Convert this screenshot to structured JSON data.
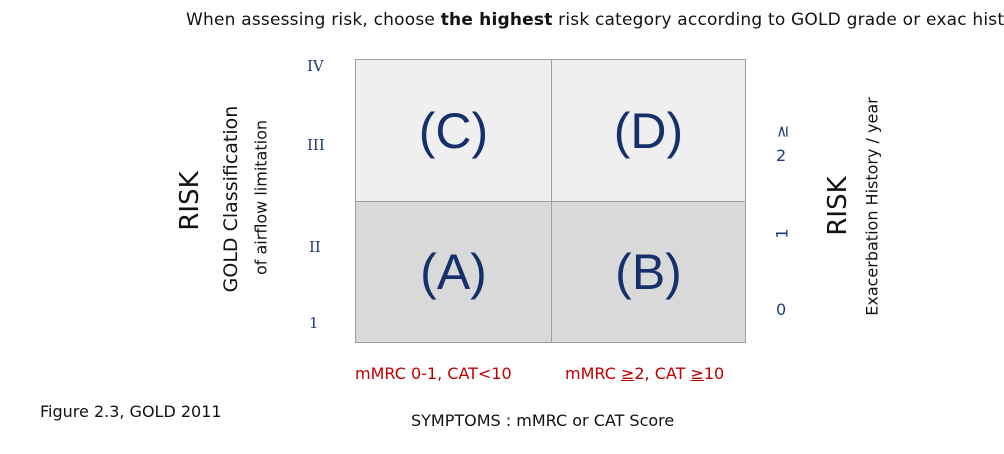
{
  "header": {
    "prefix": "When assessing risk, choose ",
    "bold": "the highest",
    "suffix": " risk category according to GOLD grade or exac history"
  },
  "left_axis": {
    "title": "RISK",
    "line1": "GOLD Classification",
    "line2": "of airflow limitation",
    "grades": [
      "IV",
      "III",
      "II",
      "1"
    ]
  },
  "right_axis": {
    "title": "RISK",
    "subtitle": "Exacerbation History / year",
    "ticks": {
      "top": "≥",
      "top_num": "2",
      "mid": "1",
      "bottom": "0"
    }
  },
  "quadrants": {
    "top_left": "(C)",
    "top_right": "(D)",
    "bottom_left": "(A)",
    "bottom_right": "(B)"
  },
  "symptom_labels": {
    "left": "mMRC 0-1, CAT<10",
    "right_prefix": "mMRC ",
    "right_ge1": "≥",
    "right_mid": "2, CAT ",
    "right_ge2": "≥",
    "right_suffix": "10"
  },
  "bottom_axis_label": "SYMPTOMS : mMRC or CAT Score",
  "figure_caption": "Figure 2.3, GOLD 2011",
  "colors": {
    "quadrant_text": "#15306b",
    "symptom_text": "#c00000",
    "top_fill": "#efefef",
    "bottom_fill": "#d9d9d9"
  }
}
